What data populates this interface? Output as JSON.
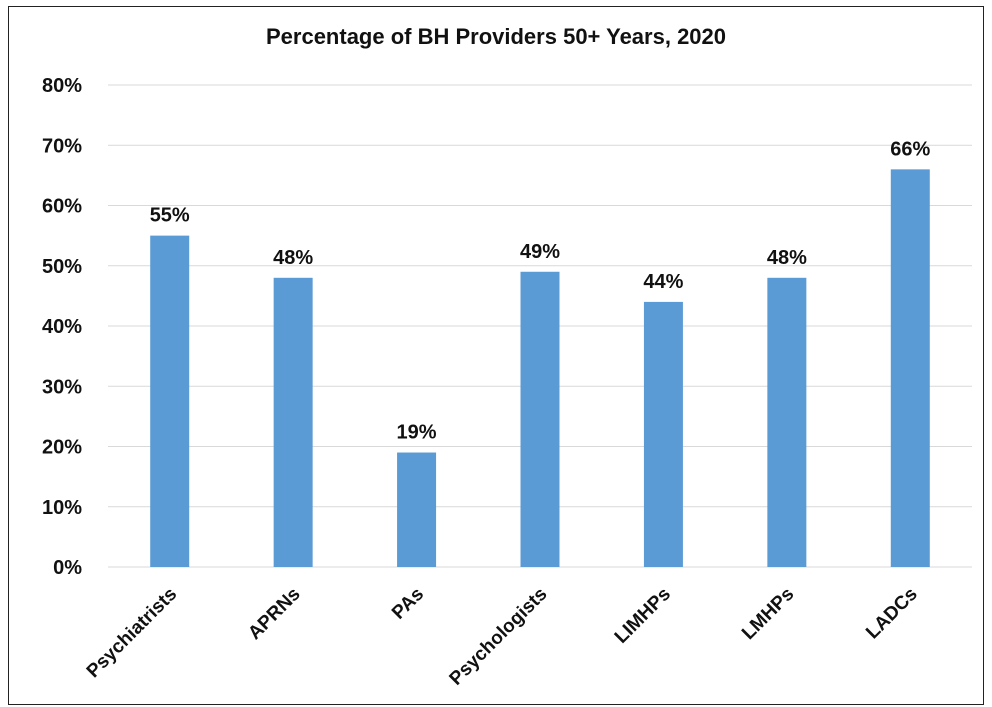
{
  "chart_data": {
    "type": "bar",
    "title": "Percentage of BH Providers 50+ Years, 2020",
    "xlabel": "",
    "ylabel": "",
    "categories": [
      "Psychiatrists",
      "APRNs",
      "PAs",
      "Psychologists",
      "LIMHPs",
      "LMHPs",
      "LADCs"
    ],
    "values": [
      55,
      48,
      19,
      49,
      44,
      48,
      66
    ],
    "data_labels": [
      "55%",
      "48%",
      "19%",
      "49%",
      "44%",
      "48%",
      "66%"
    ],
    "ylim": [
      0,
      80
    ],
    "yticks": [
      0,
      10,
      20,
      30,
      40,
      50,
      60,
      70,
      80
    ],
    "ytick_labels": [
      "0%",
      "10%",
      "20%",
      "30%",
      "40%",
      "50%",
      "60%",
      "70%",
      "80%"
    ],
    "grid": true,
    "legend": "none",
    "bar_color": "#5b9bd5",
    "grid_color": "#d9d9d9"
  }
}
